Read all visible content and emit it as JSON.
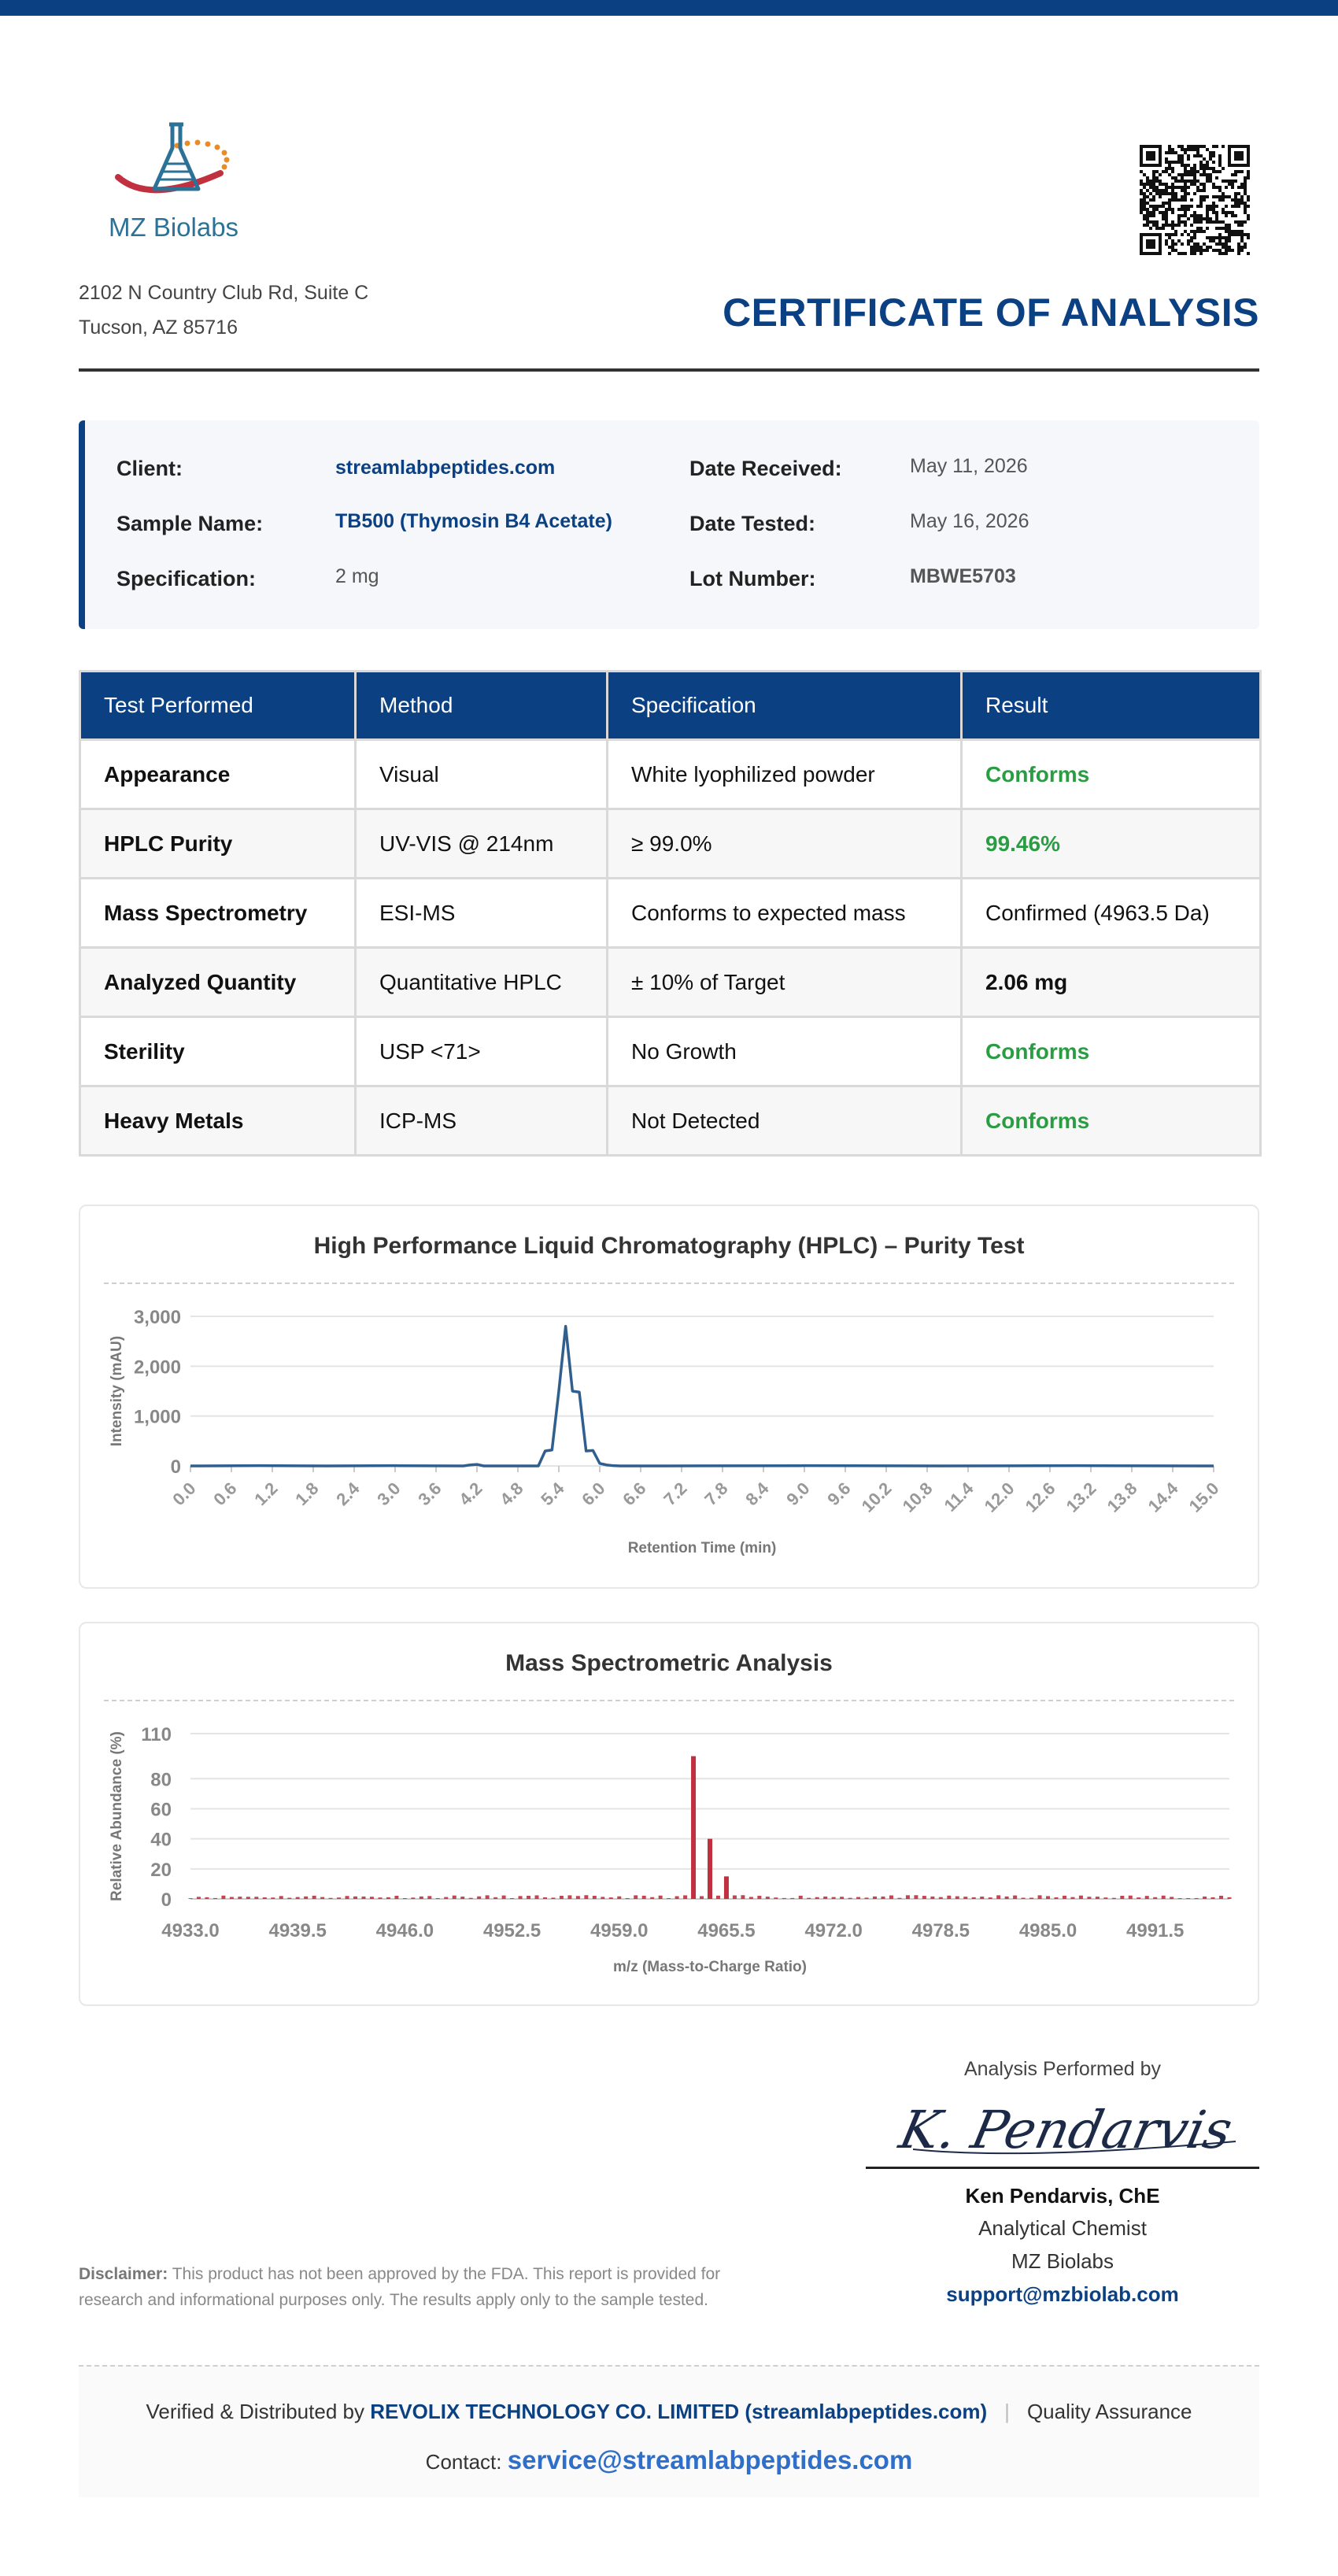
{
  "brand": {
    "name": "MZ Biolabs",
    "primary_color": "#0b4182",
    "accent_color": "#2c7296",
    "logo_icon": "flask-orbit-icon"
  },
  "address": {
    "line1": "2102 N Country Club Rd, Suite C",
    "line2": "Tucson, AZ 85716"
  },
  "qr_icon": "qr-code-icon",
  "title": "CERTIFICATE OF ANALYSIS",
  "info": {
    "client_label": "Client:",
    "client_value": "streamlabpeptides.com",
    "sample_label": "Sample Name:",
    "sample_value": "TB500 (Thymosin B4 Acetate)",
    "spec_label": "Specification:",
    "spec_value": "2 mg",
    "received_label": "Date Received:",
    "received_value": "May 11, 2026",
    "tested_label": "Date Tested:",
    "tested_value": "May 16, 2026",
    "lot_label": "Lot Number:",
    "lot_value": "MBWE5703"
  },
  "tests": {
    "headers": [
      "Test Performed",
      "Method",
      "Specification",
      "Result"
    ],
    "rows": [
      {
        "test": "Appearance",
        "method": "Visual",
        "spec": "White lyophilized powder",
        "result": "Conforms"
      },
      {
        "test": "HPLC Purity",
        "method": "UV-VIS @ 214nm",
        "spec": "≥ 99.0%",
        "result": "99.46%"
      },
      {
        "test": "Mass Spectrometry",
        "method": "ESI-MS",
        "spec": "Conforms to expected mass",
        "result": "Confirmed (4963.5 Da)"
      },
      {
        "test": "Analyzed Quantity",
        "method": "Quantitative HPLC",
        "spec": "± 10% of Target",
        "result": "2.06 mg"
      },
      {
        "test": "Sterility",
        "method": "USP <71>",
        "spec": "No Growth",
        "result": "Conforms"
      },
      {
        "test": "Heavy Metals",
        "method": "ICP-MS",
        "spec": "Not Detected",
        "result": "Conforms"
      }
    ]
  },
  "chart_data": [
    {
      "type": "line",
      "title": "High Performance Liquid Chromatography (HPLC) – Purity Test",
      "xlabel": "Retention Time (min)",
      "ylabel": "Intensity (mAU)",
      "xlim": [
        0,
        15
      ],
      "ylim": [
        0,
        3000
      ],
      "xticks": [
        "0.0",
        "0.6",
        "1.2",
        "1.8",
        "2.4",
        "3.0",
        "3.6",
        "4.2",
        "4.8",
        "5.4",
        "6.0",
        "6.6",
        "7.2",
        "7.8",
        "8.4",
        "9.0",
        "9.6",
        "10.2",
        "10.8",
        "11.4",
        "12.0",
        "12.6",
        "13.2",
        "13.8",
        "14.4",
        "15.0"
      ],
      "yticks": [
        "0",
        "1,000",
        "2,000",
        "3,000"
      ],
      "grid": true,
      "color": "#2f5f8f",
      "x": [
        0.0,
        1.0,
        2.0,
        3.0,
        4.0,
        4.1,
        4.2,
        4.3,
        5.1,
        5.2,
        5.3,
        5.4,
        5.5,
        5.6,
        5.7,
        5.8,
        5.9,
        6.0,
        6.1,
        6.2,
        6.3,
        7.0,
        9.0,
        11.0,
        13.0,
        15.0
      ],
      "y": [
        0,
        5,
        0,
        5,
        0,
        20,
        30,
        0,
        0,
        300,
        320,
        1500,
        2800,
        1500,
        1480,
        300,
        310,
        50,
        20,
        5,
        0,
        0,
        5,
        0,
        5,
        0
      ]
    },
    {
      "type": "bar",
      "title": "Mass Spectrometric Analysis",
      "xlabel": "m/z (Mass-to-Charge Ratio)",
      "ylabel": "Relative Abundance (%)",
      "xlim": [
        4933.0,
        4996.0
      ],
      "ylim": [
        0,
        110
      ],
      "xticks": [
        "4933.0",
        "4939.5",
        "4946.0",
        "4952.5",
        "4959.0",
        "4965.5",
        "4972.0",
        "4978.5",
        "4985.0",
        "4991.5"
      ],
      "yticks": [
        "0",
        "20",
        "40",
        "60",
        "80",
        "110"
      ],
      "grid": true,
      "color": "#c0303f",
      "peaks": [
        {
          "x": 4963.5,
          "value": 95
        },
        {
          "x": 4964.5,
          "value": 40
        },
        {
          "x": 4965.5,
          "value": 15
        }
      ],
      "baseline_range": [
        0.5,
        2.5
      ]
    }
  ],
  "signature": {
    "caption": "Analysis Performed by",
    "signature_text": "K. Pendarvis",
    "name": "Ken Pendarvis, ChE",
    "role": "Analytical Chemist",
    "org": "MZ Biolabs",
    "email": "support@mzbiolab.com"
  },
  "disclaimer": {
    "label": "Disclaimer:",
    "text": " This product has not been approved by the FDA. This report is provided for research and informational purposes only. The results apply only to the sample tested."
  },
  "footer": {
    "verified_prefix": "Verified & Distributed by ",
    "company": "REVOLIX TECHNOLOGY CO. LIMITED (streamlabpeptides.com)",
    "separator": "|",
    "qa": "Quality Assurance",
    "contact_label": "Contact: ",
    "contact_email": "service@streamlabpeptides.com"
  }
}
